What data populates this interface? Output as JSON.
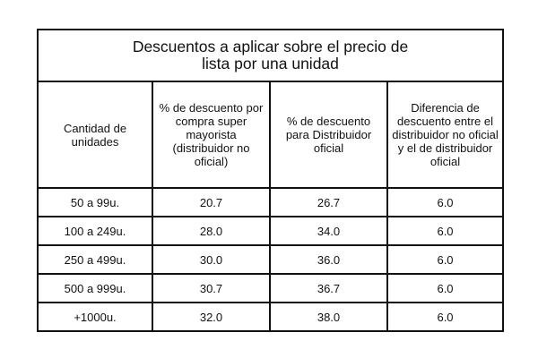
{
  "title": {
    "line1": "Descuentos a aplicar sobre el precio de",
    "line2": "lista por una unidad"
  },
  "headers": [
    "Cantidad de unidades",
    "% de descuento por compra super mayorista (distribuidor no oficial)",
    "% de descuento para Distribuidor oficial",
    "Diferencia de descuento entre el distribuidor no oficial y el de distribuidor oficial"
  ],
  "rows": [
    [
      "50 a 99u.",
      "20.7",
      "26.7",
      "6.0"
    ],
    [
      "100 a 249u.",
      "28.0",
      "34.0",
      "6.0"
    ],
    [
      "250 a 499u.",
      "30.0",
      "36.0",
      "6.0"
    ],
    [
      "500 a 999u.",
      "30.7",
      "36.7",
      "6.0"
    ],
    [
      "+1000u.",
      "32.0",
      "38.0",
      "6.0"
    ]
  ]
}
